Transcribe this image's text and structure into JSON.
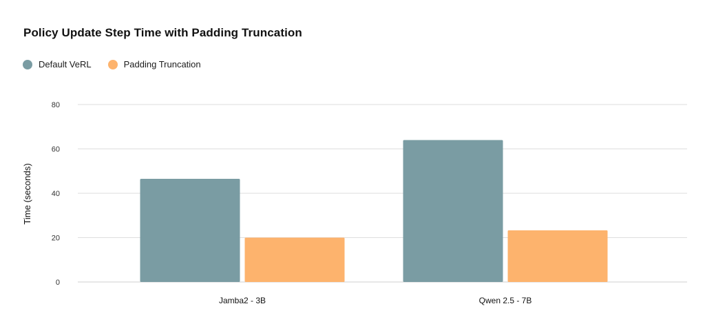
{
  "chart_data": {
    "type": "bar",
    "title": "Policy Update Step Time with Padding Truncation",
    "xlabel": "",
    "ylabel": "Time (seconds)",
    "categories": [
      "Jamba2 - 3B",
      "Qwen 2.5 - 7B"
    ],
    "series": [
      {
        "name": "Default VeRL",
        "color": "#7a9ca3",
        "values": [
          46.5,
          64
        ]
      },
      {
        "name": "Padding Truncation",
        "color": "#fdb36d",
        "values": [
          20,
          23.3
        ]
      }
    ],
    "ylim": [
      0,
      80
    ],
    "yticks": [
      "0",
      "20",
      "40",
      "60",
      "80"
    ],
    "grid": true,
    "legend_position": "top-left"
  }
}
